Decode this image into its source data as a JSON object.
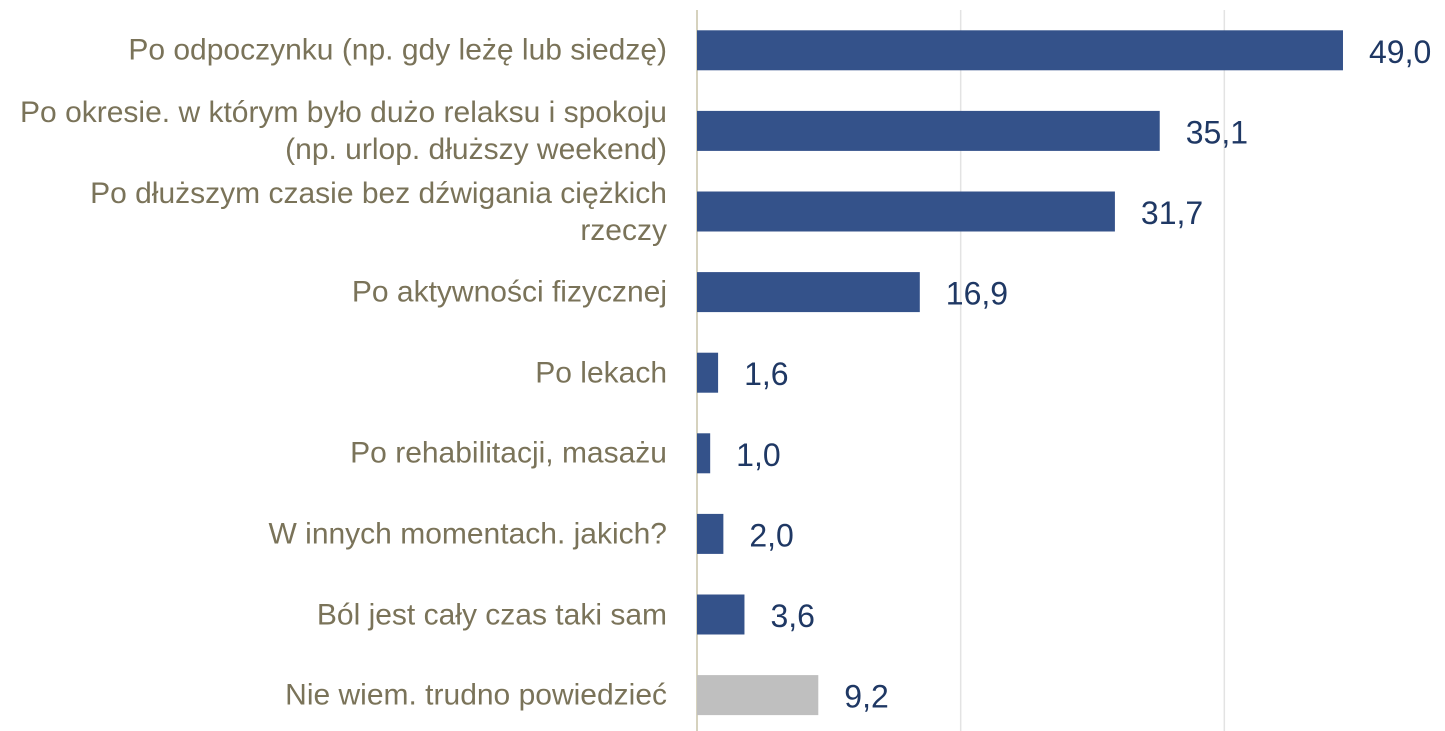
{
  "chart_data": {
    "type": "barh",
    "categories": [
      "Po odpoczynku (np. gdy leżę lub siedzę)",
      "Po okresie. w którym było dużo relaksu i spokoju (np. urlop. dłuższy weekend)",
      "Po dłuższym czasie bez dźwigania ciężkich rzeczy",
      "Po aktywności fizycznej",
      "Po lekach",
      "Po rehabilitacji, masażu",
      "W innych momentach. jakich?",
      "Ból jest cały czas taki sam",
      "Nie wiem. trudno powiedzieć"
    ],
    "values": [
      49.0,
      35.1,
      31.7,
      16.9,
      1.6,
      1.0,
      2.0,
      3.6,
      9.2
    ],
    "value_labels": [
      "49,0",
      "35,1",
      "31,7",
      "16,9",
      "1,6",
      "1,0",
      "2,0",
      "3,6",
      "9,2"
    ],
    "colors": [
      "#34528a",
      "#34528a",
      "#34528a",
      "#34528a",
      "#34528a",
      "#34528a",
      "#34528a",
      "#34528a",
      "#bfbfbf"
    ],
    "xlim": [
      0,
      60
    ],
    "xticks": [
      0,
      20,
      40
    ],
    "grid": true
  }
}
